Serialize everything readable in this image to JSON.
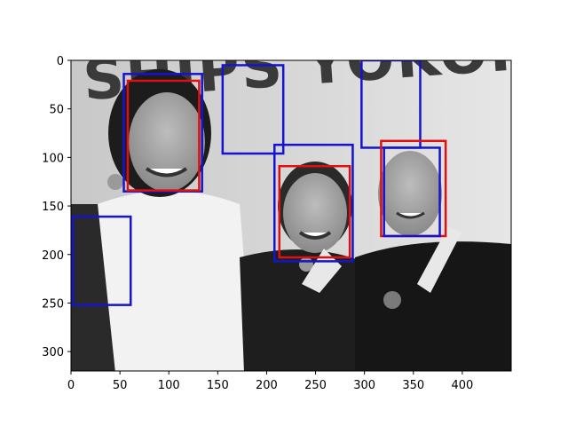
{
  "chart_data": {
    "type": "image",
    "image_description": "grayscale photo of three swimmers holding medals in front of a banner",
    "banner_text": "SHIPS YOKOHAMA",
    "xlim": [
      0,
      450
    ],
    "ylim": [
      320,
      0
    ],
    "x_ticks": [
      0,
      50,
      100,
      150,
      200,
      250,
      300,
      350,
      400
    ],
    "y_ticks": [
      0,
      50,
      100,
      150,
      200,
      250,
      300
    ],
    "xlabel": "",
    "ylabel": "",
    "title": "",
    "box_colors": {
      "blue": "#1414cc",
      "red": "#e01010"
    },
    "boxes": [
      {
        "color": "blue",
        "x0": 54,
        "y0": 14,
        "x1": 134,
        "y1": 135
      },
      {
        "color": "red",
        "x0": 58,
        "y0": 21,
        "x1": 131,
        "y1": 134
      },
      {
        "color": "blue",
        "x0": 155,
        "y0": 5,
        "x1": 217,
        "y1": 96
      },
      {
        "color": "blue",
        "x0": 208,
        "y0": 87,
        "x1": 288,
        "y1": 207
      },
      {
        "color": "red",
        "x0": 213,
        "y0": 109,
        "x1": 285,
        "y1": 203
      },
      {
        "color": "blue",
        "x0": 297,
        "y0": 0,
        "x1": 357,
        "y1": 90
      },
      {
        "color": "red",
        "x0": 317,
        "y0": 83,
        "x1": 383,
        "y1": 181
      },
      {
        "color": "blue",
        "x0": 320,
        "y0": 90,
        "x1": 377,
        "y1": 181
      },
      {
        "color": "blue",
        "x0": 2,
        "y0": 161,
        "x1": 61,
        "y1": 252
      }
    ]
  }
}
